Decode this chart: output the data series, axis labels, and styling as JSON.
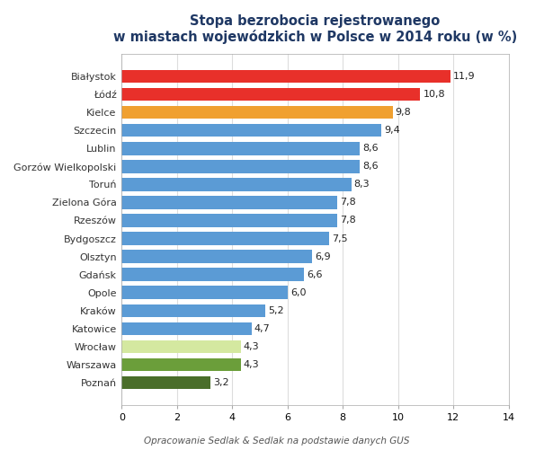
{
  "categories": [
    "Białystok",
    "Łódź",
    "Kielce",
    "Szczecin",
    "Lublin",
    "Gorzów Wielkopolski",
    "Toruń",
    "Zielona Góra",
    "Rzeszów",
    "Bydgoszcz",
    "Olsztyn",
    "Gdańsk",
    "Opole",
    "Kraków",
    "Katowice",
    "Wrocław",
    "Warszawa",
    "Poznań"
  ],
  "values": [
    11.9,
    10.8,
    9.8,
    9.4,
    8.6,
    8.6,
    8.3,
    7.8,
    7.8,
    7.5,
    6.9,
    6.6,
    6.0,
    5.2,
    4.7,
    4.3,
    4.3,
    3.2
  ],
  "colors": [
    "#e8302a",
    "#e8302a",
    "#f0a030",
    "#5b9bd5",
    "#5b9bd5",
    "#5b9bd5",
    "#5b9bd5",
    "#5b9bd5",
    "#5b9bd5",
    "#5b9bd5",
    "#5b9bd5",
    "#5b9bd5",
    "#5b9bd5",
    "#5b9bd5",
    "#5b9bd5",
    "#d4e8a0",
    "#6b9e3a",
    "#4a6e2a"
  ],
  "title_line1": "Stopa bezrobocia rejestrowanego",
  "title_line2": "w miastach wojewódzkich w Polsce w 2014 roku (w %)",
  "xlim": [
    0,
    14
  ],
  "xticks": [
    0,
    2,
    4,
    6,
    8,
    10,
    12,
    14
  ],
  "footnote": "Opracowanie Sedlak & Sedlak na podstawie danych GUS",
  "background_color": "#ffffff",
  "plot_bg_color": "#ffffff",
  "title_color": "#1f3864",
  "bar_label_fontsize": 8,
  "ytick_label_fontsize": 8,
  "xtick_label_fontsize": 8,
  "title_fontsize": 10.5,
  "bar_height": 0.72
}
